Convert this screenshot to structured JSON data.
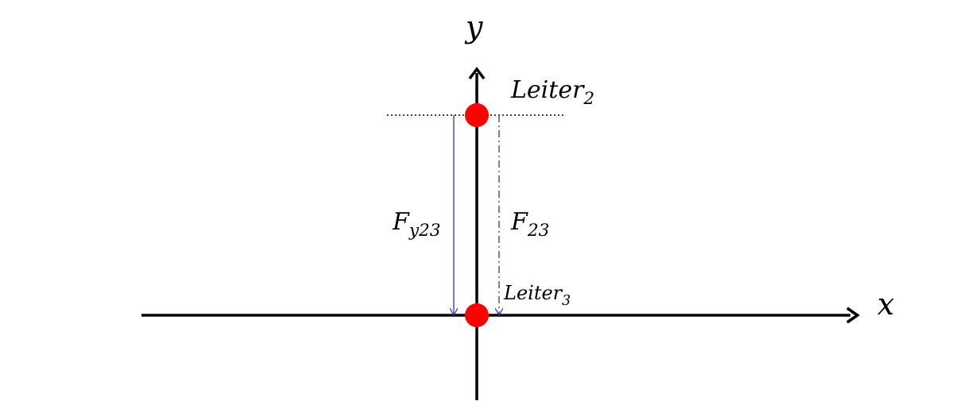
{
  "axes": {
    "x_label": "x",
    "y_label": "y"
  },
  "conductors": [
    {
      "name": "Leiter",
      "index": "2"
    },
    {
      "name": "Leiter",
      "index": "3"
    }
  ],
  "forces": [
    {
      "name": "F",
      "index": "y23",
      "style": "solid"
    },
    {
      "name": "F",
      "index": "23",
      "style": "dash-dot"
    }
  ],
  "colors": {
    "axis": "#000000",
    "conductor": "#ff0000",
    "force": "#3333aa",
    "reference_line": "#000000"
  }
}
